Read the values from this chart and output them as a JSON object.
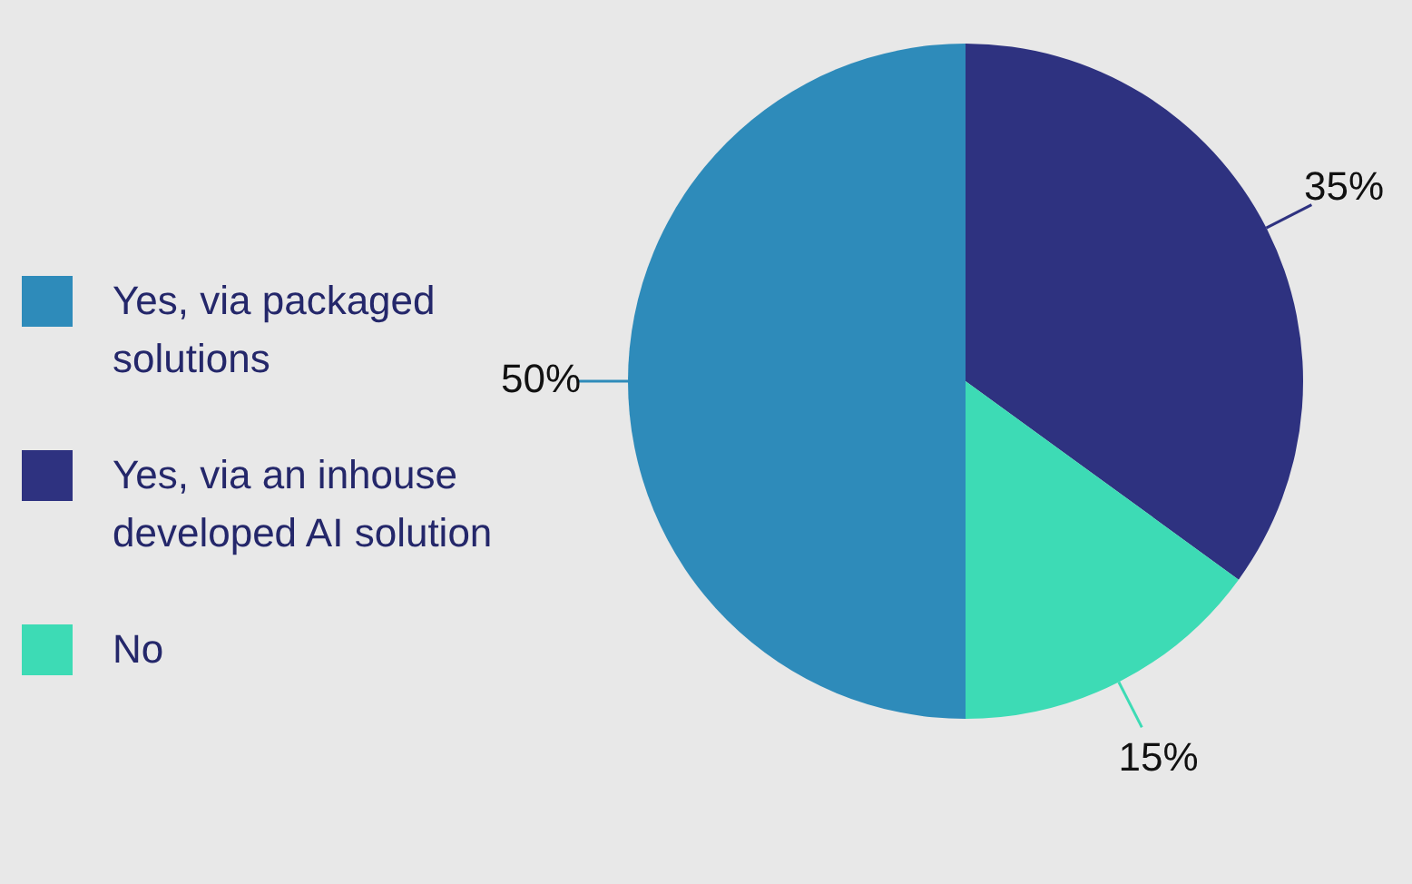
{
  "chart_data": {
    "type": "pie",
    "categories": [
      "Yes, via packaged solutions",
      "Yes, via an inhouse developed AI solution",
      "No"
    ],
    "values": [
      50,
      35,
      15
    ],
    "colors": [
      "#2e8bba",
      "#2e3280",
      "#3ddbb5"
    ],
    "value_labels": [
      "50%",
      "35%",
      "15%"
    ],
    "legend": "left"
  }
}
